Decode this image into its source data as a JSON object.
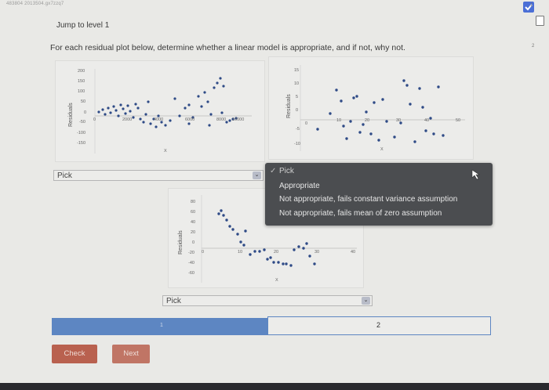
{
  "header": {
    "doc_id": "483804 2013504.gx7zzq7",
    "jump_label": "Jump to level 1",
    "prompt": "For each residual plot below, determine whether a linear model is appropriate, and if not, why not."
  },
  "plots": [
    {
      "ylabel": "Residuals",
      "xlabel": "X",
      "yticks": [
        "200",
        "150",
        "100",
        "50",
        "0",
        "-50",
        "-100",
        "-150"
      ],
      "xticks": [
        "0",
        "2000",
        "4000",
        "6000",
        "8000",
        "10000"
      ]
    },
    {
      "ylabel": "Residuals",
      "xlabel": "X",
      "yticks": [
        "15",
        "10",
        "5",
        "0",
        "-5",
        "-10"
      ],
      "xticks": [
        "0",
        "10",
        "20",
        "30",
        "40",
        "50"
      ]
    },
    {
      "ylabel": "Residuals",
      "xlabel": "X",
      "yticks": [
        "80",
        "60",
        "40",
        "20",
        "0",
        "-20",
        "-40",
        "-60"
      ],
      "xticks": [
        "0",
        "10",
        "20",
        "30",
        "40"
      ]
    }
  ],
  "selects": {
    "first": "Pick",
    "third": "Pick"
  },
  "dropdown": {
    "header": "Pick",
    "options": [
      "Appropriate",
      "Not appropriate, fails constant variance assumption",
      "Not appropriate, fails mean of zero assumption"
    ]
  },
  "progress": {
    "marker_left": "1",
    "marker_right": "2",
    "fraction": 0.49
  },
  "buttons": {
    "check": "Check",
    "next": "Next"
  },
  "side": {
    "num1": "1",
    "num2": "2"
  },
  "colors": {
    "accent": "#5d86c2",
    "button": "#b9614f",
    "menu_bg": "#4b4d50",
    "dots": "#2e4a86"
  }
}
